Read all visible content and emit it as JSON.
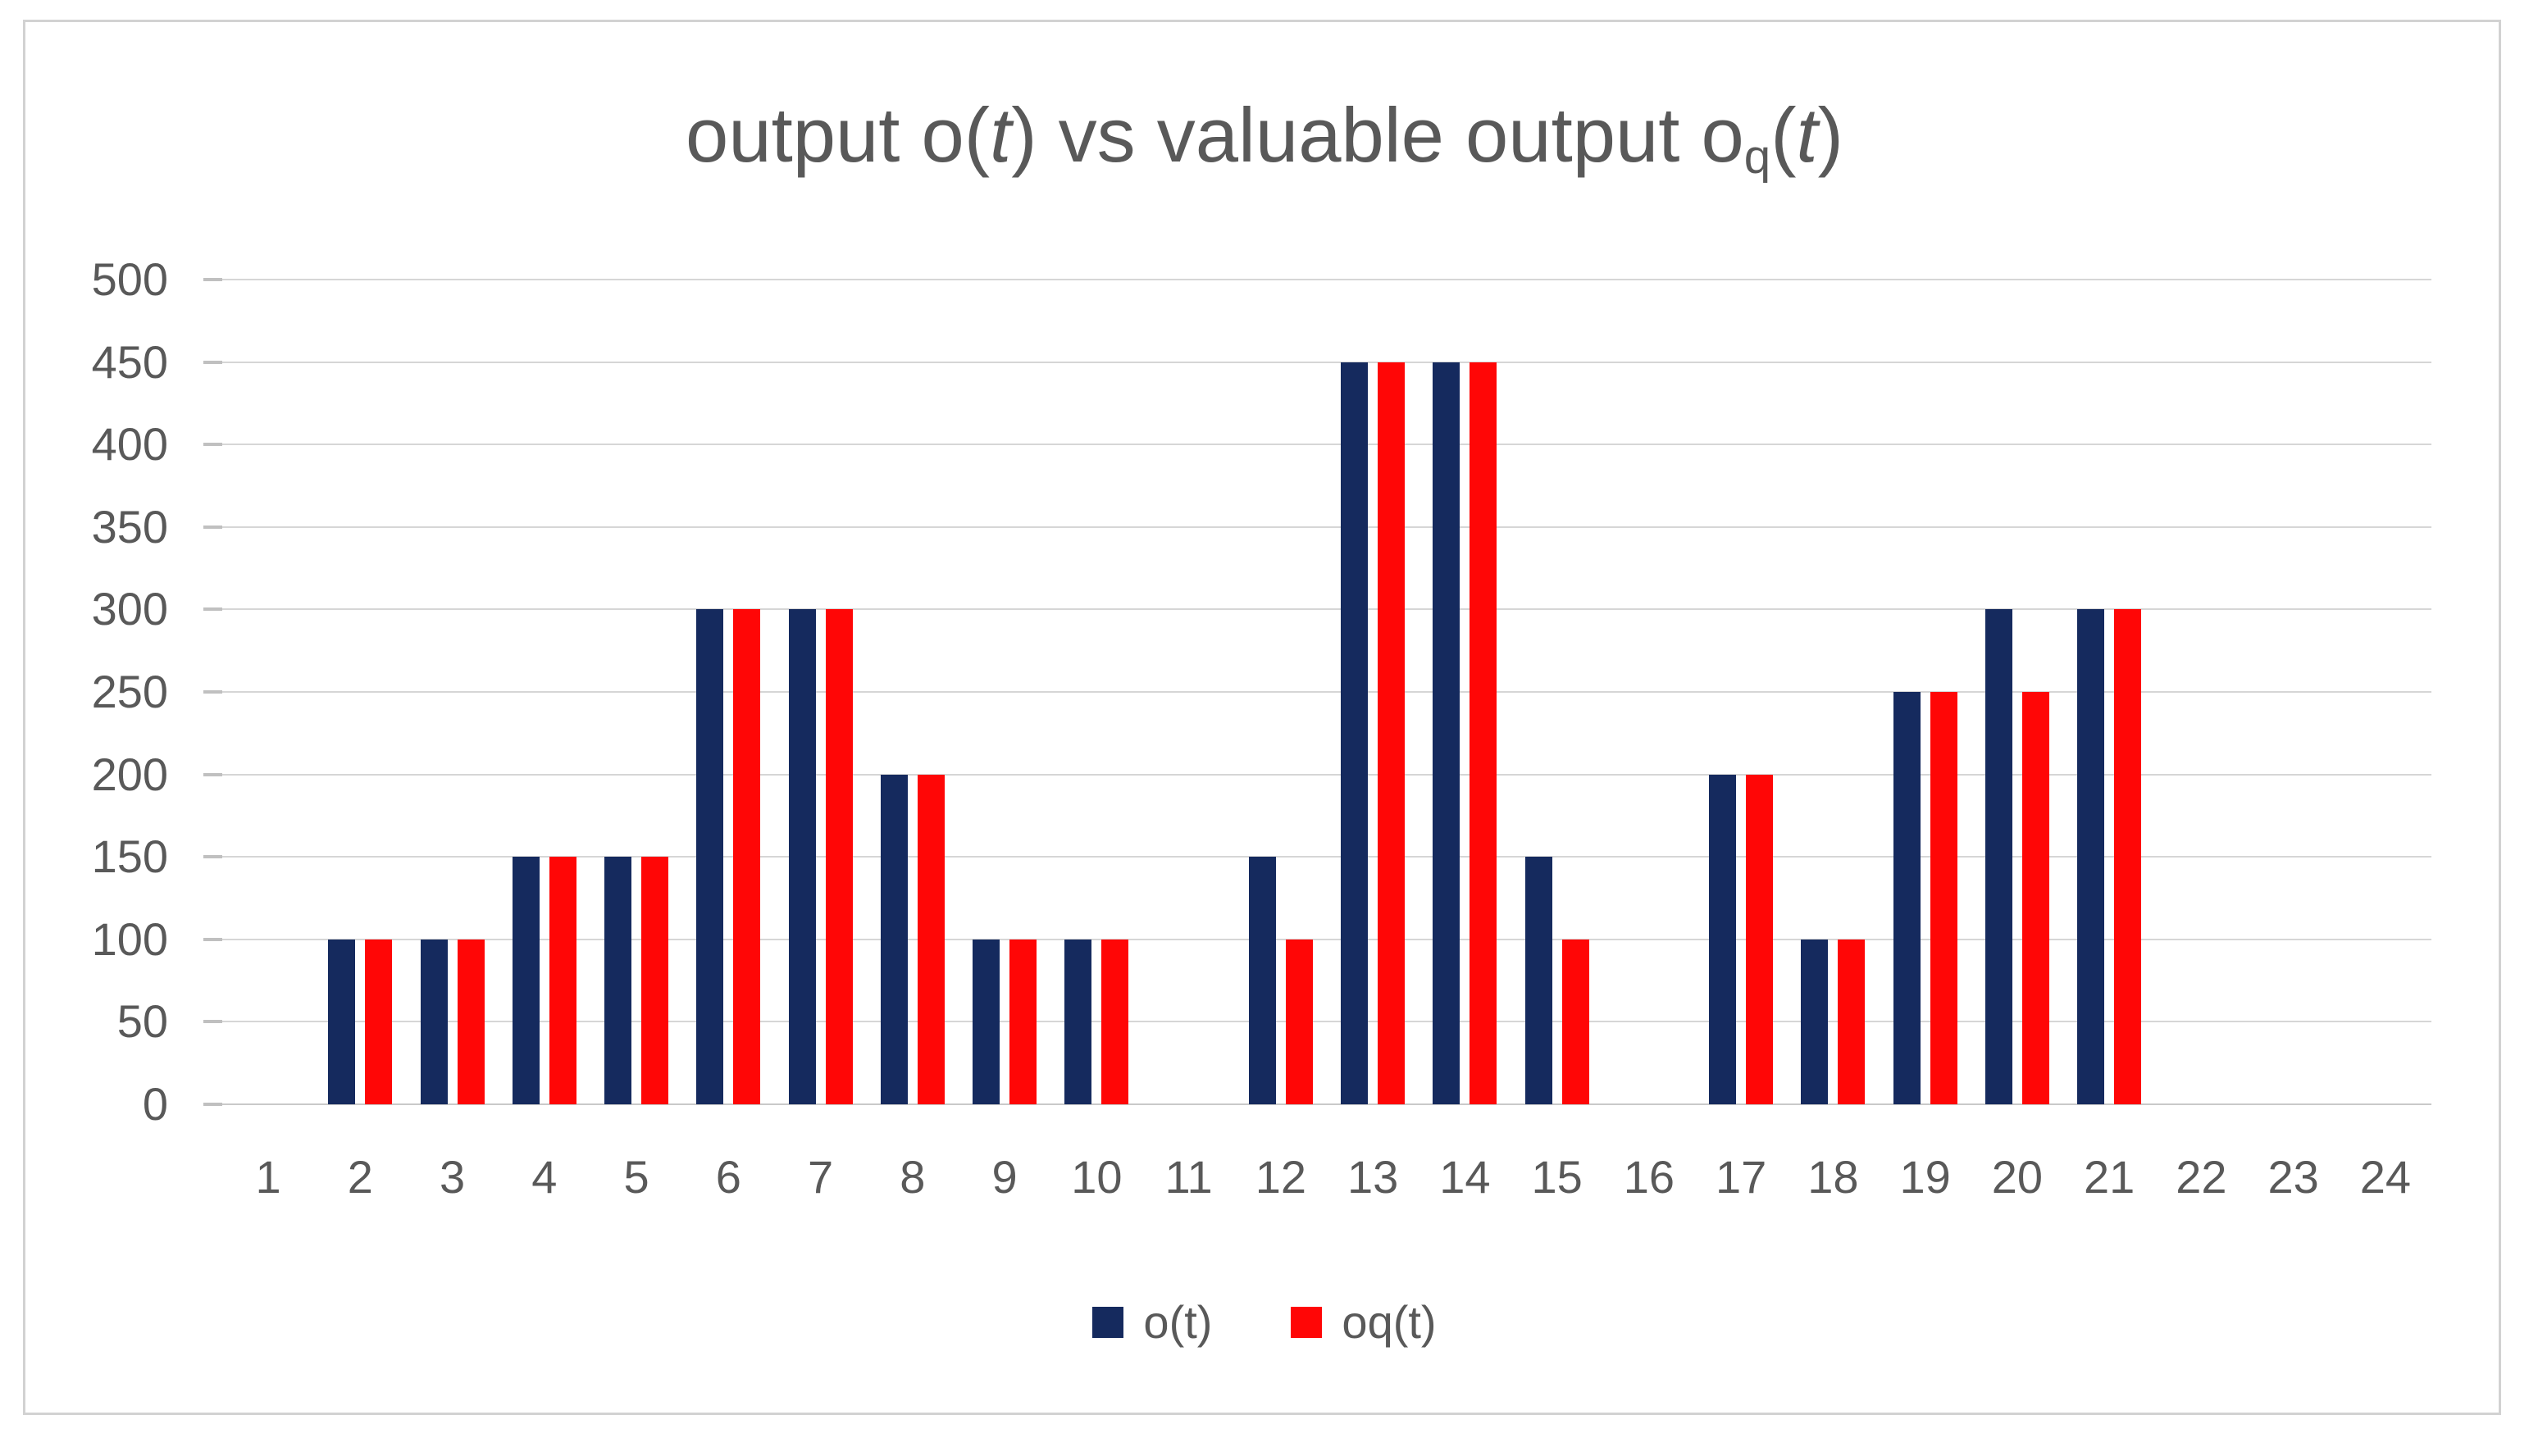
{
  "title": {
    "pre": "output o(",
    "t1": "t",
    "mid": ") vs valuable output o",
    "sub_q": "q",
    "open_paren": "(",
    "t2": "t",
    "close_paren": ")"
  },
  "chart_data": {
    "type": "bar",
    "title": "output o(t) vs valuable output oq(t)",
    "categories": [
      "1",
      "2",
      "3",
      "4",
      "5",
      "6",
      "7",
      "8",
      "9",
      "10",
      "11",
      "12",
      "13",
      "14",
      "15",
      "16",
      "17",
      "18",
      "19",
      "20",
      "21",
      "22",
      "23",
      "24"
    ],
    "series": [
      {
        "name": "o(t)",
        "color": "#152a5e",
        "values": [
          0,
          100,
          100,
          150,
          150,
          300,
          300,
          200,
          100,
          100,
          0,
          150,
          450,
          450,
          150,
          0,
          200,
          100,
          250,
          300,
          300,
          0,
          0,
          0
        ]
      },
      {
        "name": "oq(t)",
        "color": "#ff0606",
        "values": [
          0,
          100,
          100,
          150,
          150,
          300,
          300,
          200,
          100,
          100,
          0,
          100,
          450,
          450,
          100,
          0,
          200,
          100,
          250,
          250,
          300,
          0,
          0,
          0
        ]
      }
    ],
    "xlabel": "",
    "ylabel": "",
    "ylim": [
      0,
      500
    ],
    "yticks": [
      0,
      50,
      100,
      150,
      200,
      250,
      300,
      350,
      400,
      450,
      500
    ],
    "grid": true,
    "legend_position": "bottom"
  },
  "colors": {
    "text": "#595959",
    "gridline": "#d6d6d6",
    "border": "#d2d2d2",
    "background": "#ffffff"
  }
}
